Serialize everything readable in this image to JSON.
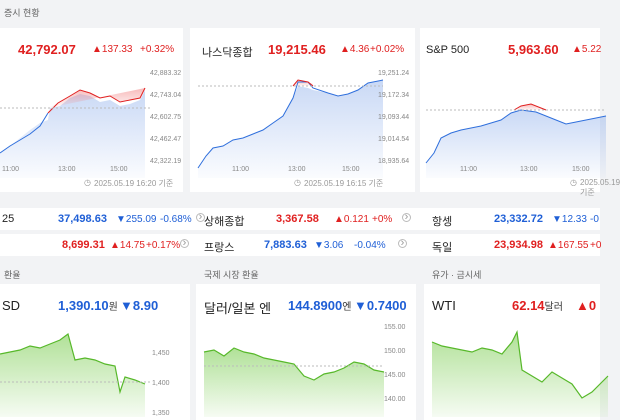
{
  "top_section": {
    "label": "증시 현황"
  },
  "index_panels": [
    {
      "name": "",
      "value": "42,792.07",
      "change": "▲137.33",
      "pct": "+0.32%",
      "dir": "up",
      "timestamp": "2025.05.19 16:20 기준",
      "axis": [
        "42,883.32",
        "42,743.04",
        "42,602.75",
        "42,462.47",
        "42,322.19"
      ],
      "times": [
        "11:00",
        "13:00",
        "15:00"
      ]
    },
    {
      "name": "나스닥종합",
      "value": "19,215.46",
      "change": "▲4.36",
      "pct": "+0.02%",
      "dir": "up",
      "timestamp": "2025.05.19 16:15 기준",
      "axis": [
        "19,251.24",
        "19,172.34",
        "19,093.44",
        "19,014.54",
        "18,935.64"
      ],
      "times": [
        "11:00",
        "13:00",
        "15:00"
      ]
    },
    {
      "name": "S&P 500",
      "value": "5,963.60",
      "change": "▲5.22",
      "pct": "",
      "dir": "up",
      "timestamp": "2025.05.19 기준",
      "axis": [],
      "times": [
        "11:00",
        "13:00",
        "15:00"
      ]
    }
  ],
  "index_rows": [
    [
      {
        "name": "25",
        "value": "37,498.63",
        "change": "▼255.09",
        "pct": "-0.68%",
        "dir": "down"
      },
      {
        "name": "상해종합",
        "value": "3,367.58",
        "change": "▲0.121",
        "pct": "+0%",
        "dir": "up"
      },
      {
        "name": "항셍",
        "value": "23,332.72",
        "change": "▼12.33",
        "pct": "-0",
        "dir": "down"
      }
    ],
    [
      {
        "name": "",
        "value": "8,699.31",
        "change": "▲14.75",
        "pct": "+0.17%",
        "dir": "up"
      },
      {
        "name": "프랑스",
        "value": "7,883.63",
        "change": "▼3.06",
        "pct": "-0.04%",
        "dir": "down"
      },
      {
        "name": "독일",
        "value": "23,934.98",
        "change": "▲167.55",
        "pct": "+0",
        "dir": "up"
      }
    ]
  ],
  "fx_sections": [
    {
      "label": "환율"
    },
    {
      "label": "국제 시장 환율"
    },
    {
      "label": "유가 · 금시세"
    }
  ],
  "fx_panels": [
    {
      "name": "SD",
      "value": "1,390.10",
      "unit": "원",
      "change": "▼8.90",
      "dir": "down",
      "axis": [
        "1,450",
        "1,400",
        "1,350"
      ]
    },
    {
      "name": "달러/일본 엔",
      "value": "144.8900",
      "unit": "엔",
      "change": "▼0.7400",
      "dir": "down",
      "axis": [
        "155.00",
        "150.00",
        "145.00",
        "140.00"
      ]
    },
    {
      "name": "WTI",
      "value": "62.14",
      "unit": "달러",
      "change": "▲0",
      "dir": "up",
      "axis": []
    }
  ],
  "colors": {
    "up": "#e02020",
    "down": "#1f5fd6",
    "fx_line": "#57b82a"
  }
}
